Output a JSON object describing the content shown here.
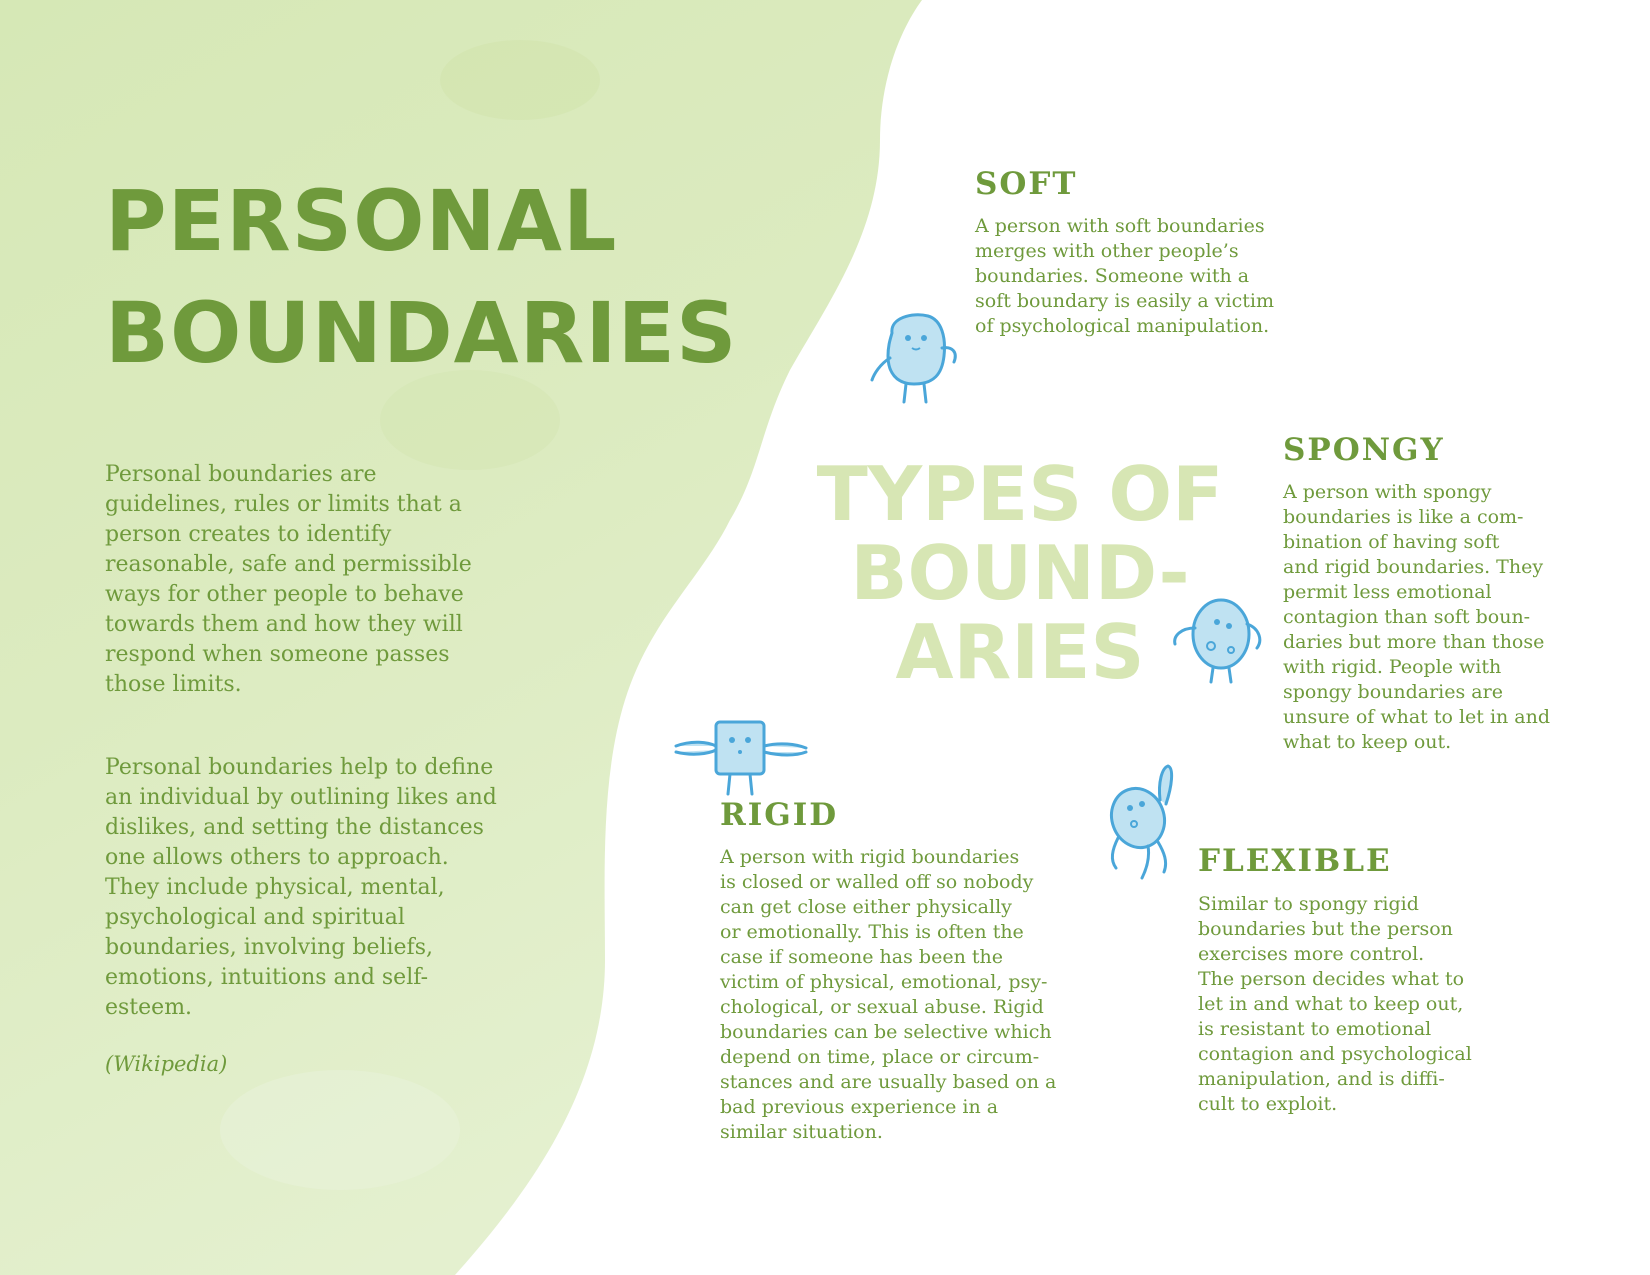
{
  "title": {
    "line1": "PERSONAL",
    "line2": "BOUNDARIES"
  },
  "intro": {
    "paragraph1": [
      "Personal boundaries are",
      "guidelines, rules or limits that",
      "a person creates to identify",
      "reasonable, safe and permissible",
      "ways for other people to behave",
      "towards them and how they will",
      "respond when someone passes",
      "those limits."
    ],
    "paragraph2": [
      "Personal boundaries help to",
      "define an individual by outlining",
      "likes and dislikes, and setting",
      "the distances one allows others",
      "to approach. They include",
      "physical, mental, psychological",
      "and spiritual boundaries,",
      "involving beliefs, emotions,",
      "intuitions and self-esteem."
    ],
    "source": "(Wikipedia)"
  },
  "types_title": {
    "line1": "TYPES OF",
    "line2": "BOUND-",
    "line3": "ARIES"
  },
  "types": {
    "soft": {
      "heading": "SOFT",
      "lines": [
        "A person with soft boundaries",
        "merges with other people’s",
        "boundaries. Someone with a",
        "soft boundary is easily a victim",
        "of psychological manipulation."
      ]
    },
    "spongy": {
      "heading": "SPONGY",
      "lines": [
        "A person with spongy",
        "boundaries is like a com-",
        "bination of having soft",
        "and rigid boundaries. They",
        "permit less emotional",
        "contagion than soft boun-",
        "daries but more than those",
        "with rigid. People with",
        "spongy boundaries are",
        "unsure of what to let in and",
        "what to keep out."
      ]
    },
    "rigid": {
      "heading": "RIGID",
      "lines": [
        "A person with rigid boundaries",
        "is closed or walled off so nobody",
        "can get close either physically",
        "or emotionally. This is often the",
        "case if someone has been the",
        "victim of physical, emotional, psy-",
        "chological, or sexual abuse. Rigid",
        "boundaries can be selective which",
        "depend on time, place or circum-",
        "stances and are usually based on a",
        "bad previous experience in a",
        "similar situation."
      ]
    },
    "flexible": {
      "heading": "FLEXIBLE",
      "lines": [
        "Similar to spongy rigid",
        "boundaries but the person",
        "exercises more control.",
        "The person decides what to",
        "let in and what to keep out,",
        "is resistant to emotional",
        "contagion and psychological",
        "manipulation, and is diffi-",
        "cult to exploit."
      ]
    }
  },
  "colors": {
    "primary_green": "#6f9a3c",
    "light_green_title": "#d7e6b4",
    "background_wash": "#d9e9bb",
    "character_blue": "#4aa6d9",
    "character_fill": "#bfe2f2"
  }
}
